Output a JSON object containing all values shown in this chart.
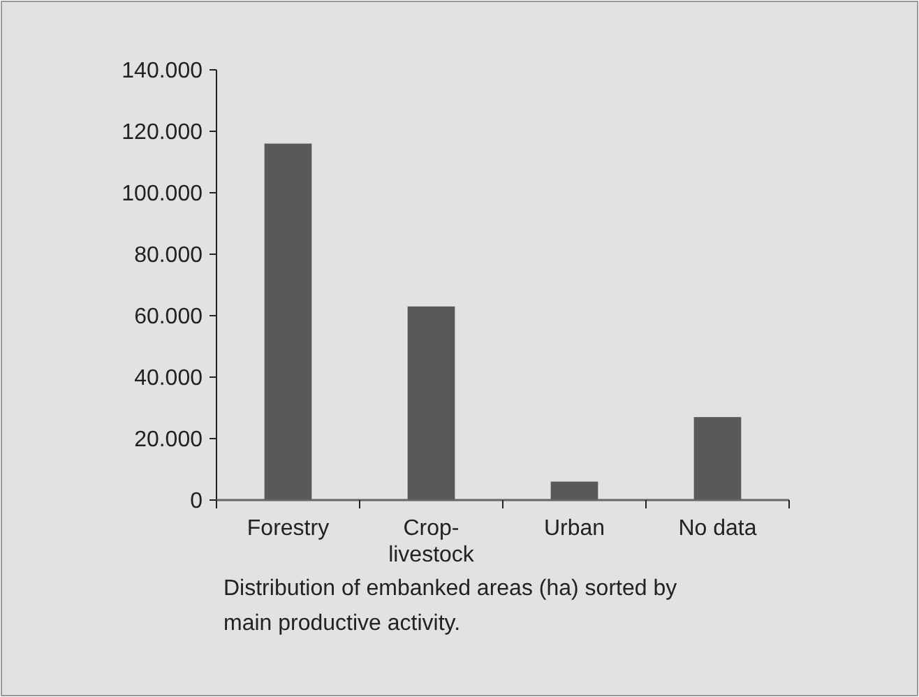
{
  "chart_data": {
    "type": "bar",
    "categories": [
      "Forestry",
      "Crop-\nlivestock",
      "Urban",
      "No data"
    ],
    "values": [
      116000,
      63000,
      6000,
      27000
    ],
    "color": "#58595b",
    "ylim": [
      0,
      140000
    ],
    "yticks": [
      0,
      {
        "value": 20000,
        "label": "20.000"
      },
      {
        "value": 40000,
        "label": "40.000"
      },
      {
        "value": 60000,
        "label": "60.000"
      },
      {
        "value": 80000,
        "label": "80.000"
      },
      {
        "value": 100000,
        "label": "100.000"
      },
      {
        "value": 120000,
        "label": "120.000"
      },
      {
        "value": 140000,
        "label": "140.000"
      }
    ],
    "grid": false,
    "annotations": [
      "Distribution of embanked areas (ha) sorted by main productive activity."
    ]
  }
}
